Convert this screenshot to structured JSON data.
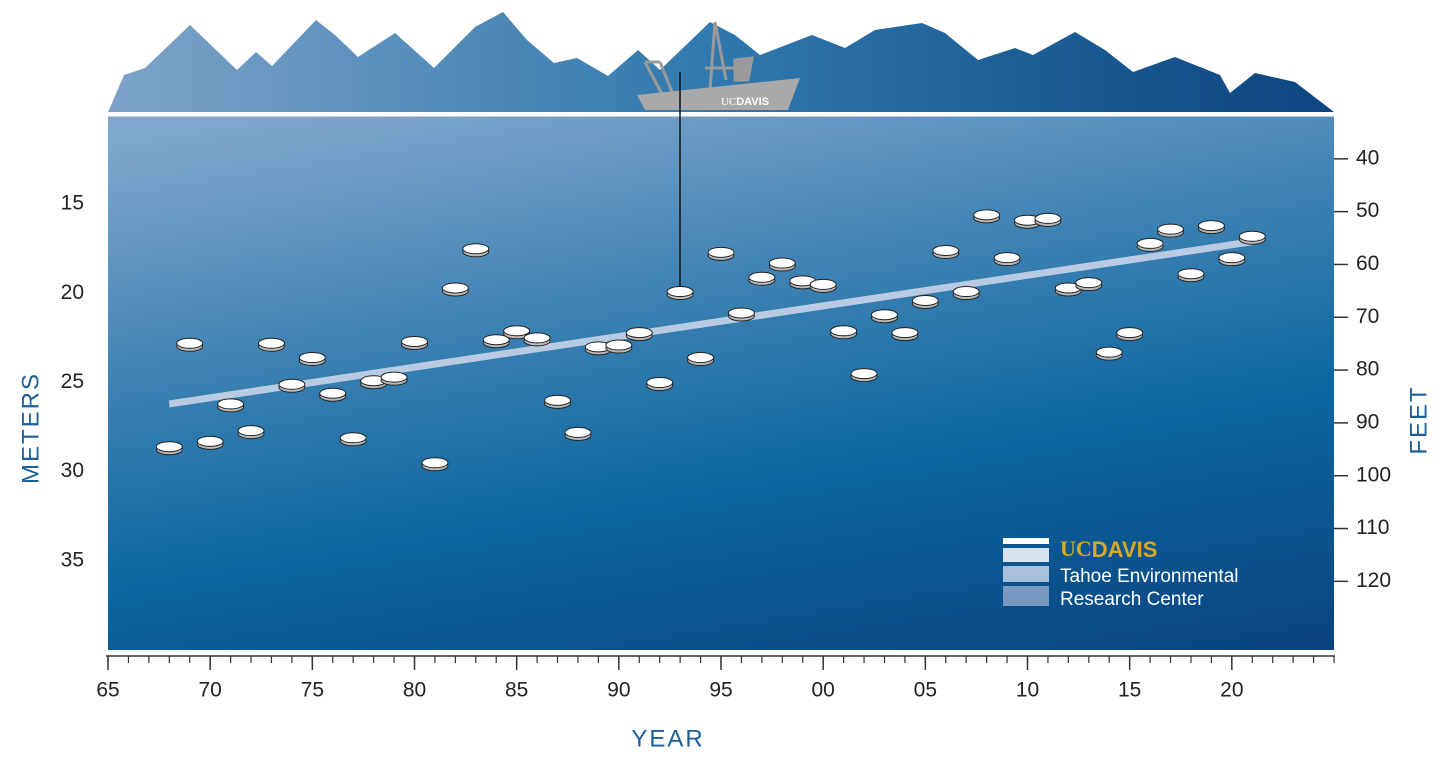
{
  "chart_data": {
    "type": "scatter",
    "x_label": "YEAR",
    "y_label": "METERS",
    "y2_label": "FEET",
    "xlim": [
      1965,
      2025
    ],
    "ylim": [
      10,
      40
    ],
    "y2lim": [
      31.7,
      133
    ],
    "xticks": [
      {
        "value": 1965,
        "label": "65"
      },
      {
        "value": 1970,
        "label": "70"
      },
      {
        "value": 1975,
        "label": "75"
      },
      {
        "value": 1980,
        "label": "80"
      },
      {
        "value": 1985,
        "label": "85"
      },
      {
        "value": 1990,
        "label": "90"
      },
      {
        "value": 1995,
        "label": "95"
      },
      {
        "value": 2000,
        "label": "00"
      },
      {
        "value": 2005,
        "label": "05"
      },
      {
        "value": 2010,
        "label": "10"
      },
      {
        "value": 2015,
        "label": "15"
      },
      {
        "value": 2020,
        "label": "20"
      }
    ],
    "yticks": [
      15,
      20,
      25,
      30,
      35
    ],
    "y2ticks": [
      40,
      50,
      60,
      70,
      80,
      90,
      100,
      110,
      120
    ],
    "x": [
      1968,
      1969,
      1970,
      1971,
      1972,
      1973,
      1974,
      1975,
      1976,
      1977,
      1978,
      1979,
      1980,
      1981,
      1982,
      1983,
      1984,
      1985,
      1986,
      1987,
      1988,
      1989,
      1990,
      1991,
      1992,
      1993,
      1994,
      1995,
      1996,
      1997,
      1998,
      1999,
      2000,
      2001,
      2002,
      2003,
      2004,
      2005,
      2006,
      2007,
      2008,
      2009,
      2010,
      2011,
      2012,
      2013,
      2014,
      2015,
      2016,
      2017,
      2018,
      2019,
      2020,
      2021
    ],
    "values": [
      28.6,
      22.8,
      28.3,
      26.2,
      27.7,
      22.8,
      25.1,
      23.6,
      25.6,
      28.1,
      24.9,
      24.7,
      22.7,
      29.5,
      19.7,
      17.5,
      22.6,
      22.1,
      22.5,
      26.0,
      27.8,
      23.0,
      22.9,
      22.2,
      25.0,
      19.9,
      23.6,
      17.7,
      21.1,
      19.1,
      18.3,
      19.3,
      19.5,
      22.1,
      24.5,
      21.2,
      22.2,
      20.4,
      17.6,
      19.9,
      15.6,
      18.0,
      15.9,
      15.8,
      19.7,
      19.4,
      23.3,
      22.2,
      17.2,
      16.4,
      18.9,
      16.2,
      18.0,
      16.8
    ],
    "trend": {
      "x": [
        1968,
        2021
      ],
      "values": [
        26.2,
        17.1
      ],
      "color": "#b9cbe3"
    }
  },
  "logo": {
    "uc": "UC",
    "davis": "DAVIS",
    "line1": "Tahoe Environmental",
    "line2": "Research Center"
  },
  "boat_label": {
    "uc": "UC",
    "davis": "DAVIS"
  }
}
